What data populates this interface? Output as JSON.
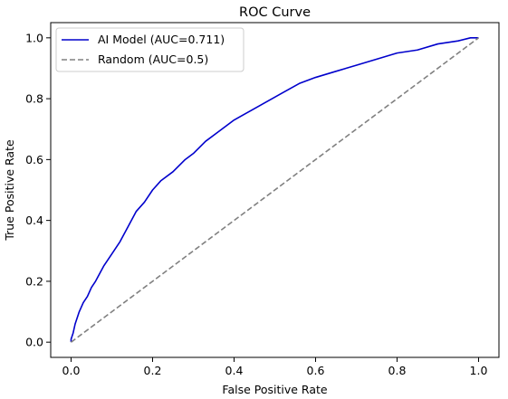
{
  "chart_data": {
    "type": "line",
    "title": "ROC Curve",
    "xlabel": "False Positive Rate",
    "ylabel": "True Positive Rate",
    "xlim": [
      -0.05,
      1.05
    ],
    "ylim": [
      -0.05,
      1.05
    ],
    "xticks": [
      0.0,
      0.2,
      0.4,
      0.6,
      0.8,
      1.0
    ],
    "yticks": [
      0.0,
      0.2,
      0.4,
      0.6,
      0.8,
      1.0
    ],
    "xtick_labels": [
      "0.0",
      "0.2",
      "0.4",
      "0.6",
      "0.8",
      "1.0"
    ],
    "ytick_labels": [
      "0.0",
      "0.2",
      "0.4",
      "0.6",
      "0.8",
      "1.0"
    ],
    "grid": false,
    "legend_position": "upper-left",
    "series": [
      {
        "name": "AI Model (AUC=0.711)",
        "color": "#0000cc",
        "style": "solid",
        "x": [
          0.0,
          0.0,
          0.005,
          0.01,
          0.02,
          0.03,
          0.04,
          0.05,
          0.06,
          0.08,
          0.1,
          0.12,
          0.14,
          0.16,
          0.18,
          0.2,
          0.22,
          0.25,
          0.28,
          0.3,
          0.33,
          0.36,
          0.4,
          0.44,
          0.48,
          0.52,
          0.56,
          0.6,
          0.65,
          0.7,
          0.75,
          0.8,
          0.85,
          0.9,
          0.95,
          0.98,
          1.0
        ],
        "y": [
          0.0,
          0.01,
          0.03,
          0.06,
          0.1,
          0.13,
          0.15,
          0.18,
          0.2,
          0.25,
          0.29,
          0.33,
          0.38,
          0.43,
          0.46,
          0.5,
          0.53,
          0.56,
          0.6,
          0.62,
          0.66,
          0.69,
          0.73,
          0.76,
          0.79,
          0.82,
          0.85,
          0.87,
          0.89,
          0.91,
          0.93,
          0.95,
          0.96,
          0.98,
          0.99,
          1.0,
          1.0
        ]
      },
      {
        "name": "Random (AUC=0.5)",
        "color": "#808080",
        "style": "dashed",
        "x": [
          0.0,
          1.0
        ],
        "y": [
          0.0,
          1.0
        ]
      }
    ]
  }
}
